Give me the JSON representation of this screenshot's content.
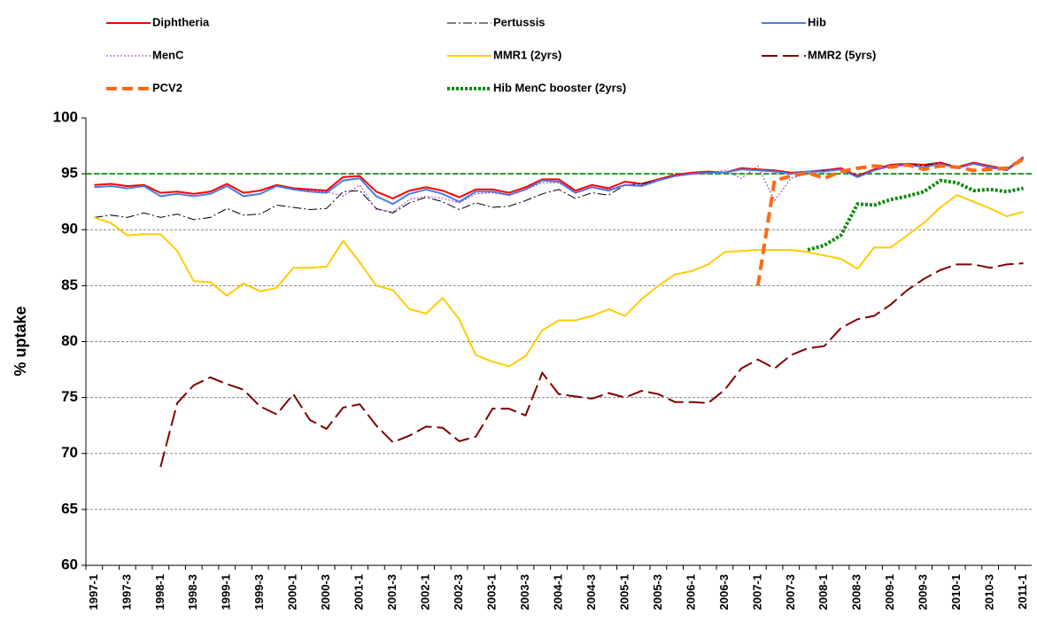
{
  "chart_data": {
    "type": "line",
    "y_label": "% uptake",
    "categories": [
      "1997-1",
      null,
      "1997-3",
      null,
      "1998-1",
      null,
      "1998-3",
      null,
      "1999-1",
      null,
      "1999-3",
      null,
      "2000-1",
      null,
      "2000-3",
      null,
      "2001-1",
      null,
      "2001-3",
      null,
      "2002-1",
      null,
      "2002-3",
      null,
      "2003-1",
      null,
      "2003-3",
      null,
      "2004-1",
      null,
      "2004-3",
      null,
      "2005-1",
      null,
      "2005-3",
      null,
      "2006-1",
      null,
      "2006-3",
      null,
      "2007-1",
      null,
      "2007-3",
      null,
      "2008-1",
      null,
      "2008-3",
      null,
      "2009-1",
      null,
      "2009-3",
      null,
      "2010-1",
      null,
      "2010-3",
      null,
      "2011-1"
    ],
    "ylim": [
      60,
      100
    ],
    "yticks": [
      60,
      65,
      70,
      75,
      80,
      85,
      90,
      95,
      100
    ],
    "grid": true,
    "reference_line": {
      "value": 95,
      "color": "#229922"
    },
    "series": [
      {
        "name": "Diphtheria",
        "color": "#ff0000",
        "style": "solid",
        "width": 2,
        "values": [
          94.0,
          94.1,
          93.9,
          94.0,
          93.3,
          93.4,
          93.2,
          93.4,
          94.1,
          93.3,
          93.5,
          94.0,
          93.7,
          93.6,
          93.5,
          94.7,
          94.8,
          93.4,
          92.8,
          93.5,
          93.8,
          93.5,
          92.9,
          93.6,
          93.6,
          93.3,
          93.8,
          94.5,
          94.5,
          93.5,
          94.0,
          93.7,
          94.3,
          94.1,
          94.5,
          94.9,
          95.1,
          95.2,
          95.1,
          95.5,
          95.4,
          95.3,
          95.1,
          95.2,
          95.3,
          95.5,
          94.8,
          95.4,
          95.8,
          95.9,
          95.8,
          96.0,
          95.6,
          96.0,
          95.7,
          95.4,
          96.5
        ]
      },
      {
        "name": "Pertussis",
        "color": "#000000",
        "style": "dashdot",
        "width": 1,
        "values": [
          91.1,
          91.3,
          91.1,
          91.5,
          91.1,
          91.4,
          90.9,
          91.1,
          91.9,
          91.3,
          91.4,
          92.2,
          92.0,
          91.8,
          91.9,
          93.4,
          93.5,
          91.9,
          91.5,
          92.4,
          92.9,
          92.5,
          91.8,
          92.4,
          92.0,
          92.1,
          92.6,
          93.2,
          93.6,
          92.8,
          93.3,
          93.1,
          94.0,
          94.1,
          94.4,
          94.8,
          95.0,
          95.1,
          95.1,
          95.4,
          95.3,
          95.2,
          95.0,
          95.2,
          95.3,
          95.4,
          94.8,
          95.3,
          95.7,
          95.9,
          95.7,
          96.0,
          95.5,
          95.9,
          95.5,
          95.4,
          96.4
        ]
      },
      {
        "name": "Hib",
        "color": "#4a7ee0",
        "style": "solid",
        "width": 2,
        "values": [
          93.8,
          93.9,
          93.7,
          93.9,
          93.0,
          93.2,
          93.0,
          93.2,
          93.9,
          93.0,
          93.2,
          93.9,
          93.6,
          93.4,
          93.3,
          94.4,
          94.6,
          93.0,
          92.3,
          93.2,
          93.6,
          93.2,
          92.5,
          93.4,
          93.4,
          93.1,
          93.6,
          94.4,
          94.3,
          93.3,
          93.8,
          93.5,
          94.0,
          93.9,
          94.4,
          94.8,
          95.0,
          95.1,
          95.1,
          95.4,
          95.3,
          95.2,
          95.0,
          95.2,
          95.2,
          95.4,
          94.7,
          95.3,
          95.7,
          95.8,
          95.6,
          95.9,
          95.5,
          95.9,
          95.6,
          95.3,
          96.4
        ]
      },
      {
        "name": "MenC",
        "color": "#9933cc",
        "style": "dotted",
        "width": 1,
        "values": [
          null,
          null,
          null,
          null,
          null,
          null,
          null,
          null,
          null,
          null,
          null,
          null,
          93.6,
          93.5,
          93.4,
          93.0,
          94.0,
          91.8,
          91.6,
          92.7,
          93.0,
          92.8,
          92.4,
          93.2,
          93.3,
          93.1,
          93.6,
          94.2,
          94.2,
          93.3,
          93.8,
          93.6,
          94.0,
          94.0,
          94.5,
          94.8,
          95.0,
          95.1,
          95.3,
          94.6,
          95.7,
          92.6,
          94.6,
          95.0,
          95.4,
          95.4,
          94.7,
          95.3,
          95.7,
          95.8,
          95.6,
          95.9,
          95.5,
          95.9,
          95.5,
          95.3,
          96.3
        ]
      },
      {
        "name": "MMR1 (2yrs)",
        "color": "#ffcc00",
        "style": "solid",
        "width": 2,
        "values": [
          91.1,
          90.6,
          89.5,
          89.6,
          89.6,
          88.1,
          85.4,
          85.3,
          84.1,
          85.2,
          84.5,
          84.8,
          86.6,
          86.6,
          86.7,
          89.0,
          87.1,
          85.0,
          84.6,
          82.9,
          82.5,
          83.9,
          82.0,
          78.8,
          78.2,
          77.8,
          78.7,
          81.0,
          81.9,
          81.9,
          82.3,
          82.9,
          82.3,
          83.8,
          85.0,
          86.0,
          86.3,
          86.9,
          88.0,
          88.1,
          88.2,
          88.2,
          88.2,
          88.0,
          87.7,
          87.4,
          86.5,
          88.4,
          88.4,
          89.5,
          90.6,
          92.0,
          93.1,
          92.5,
          91.9,
          91.2,
          91.6
        ]
      },
      {
        "name": "MMR2 (5yrs)",
        "color": "#800000",
        "style": "longdash",
        "width": 2,
        "values": [
          null,
          null,
          null,
          null,
          68.8,
          74.5,
          76.1,
          76.8,
          76.2,
          75.7,
          74.2,
          73.5,
          75.3,
          73.0,
          72.2,
          74.1,
          74.4,
          72.5,
          71.0,
          71.6,
          72.4,
          72.3,
          71.1,
          71.5,
          74.0,
          74.0,
          73.4,
          77.2,
          75.3,
          75.1,
          74.9,
          75.4,
          75.0,
          75.6,
          75.3,
          74.6,
          74.6,
          74.5,
          75.7,
          77.6,
          78.4,
          77.6,
          78.8,
          79.4,
          79.6,
          81.2,
          82.0,
          82.3,
          83.3,
          84.6,
          85.6,
          86.4,
          86.9,
          86.9,
          86.6,
          86.9,
          87.0
        ]
      },
      {
        "name": "PCV2",
        "color": "#ff6a13",
        "style": "thickdash",
        "width": 4,
        "values": [
          null,
          null,
          null,
          null,
          null,
          null,
          null,
          null,
          null,
          null,
          null,
          null,
          null,
          null,
          null,
          null,
          null,
          null,
          null,
          null,
          null,
          null,
          null,
          null,
          null,
          null,
          null,
          null,
          null,
          null,
          null,
          null,
          null,
          null,
          null,
          null,
          null,
          null,
          null,
          null,
          85.0,
          94.4,
          94.8,
          95.1,
          94.6,
          95.2,
          95.5,
          95.7,
          95.6,
          95.8,
          95.4,
          95.7,
          95.6,
          95.3,
          95.4,
          95.5,
          96.3
        ]
      },
      {
        "name": "Hib MenC booster (2yrs)",
        "color": "#138a13",
        "style": "thickdot",
        "width": 4,
        "values": [
          null,
          null,
          null,
          null,
          null,
          null,
          null,
          null,
          null,
          null,
          null,
          null,
          null,
          null,
          null,
          null,
          null,
          null,
          null,
          null,
          null,
          null,
          null,
          null,
          null,
          null,
          null,
          null,
          null,
          null,
          null,
          null,
          null,
          null,
          null,
          null,
          null,
          null,
          null,
          null,
          null,
          null,
          null,
          88.2,
          88.6,
          89.5,
          92.3,
          92.2,
          92.7,
          93.0,
          93.4,
          94.4,
          94.2,
          93.5,
          93.6,
          93.4,
          93.7
        ]
      }
    ]
  }
}
